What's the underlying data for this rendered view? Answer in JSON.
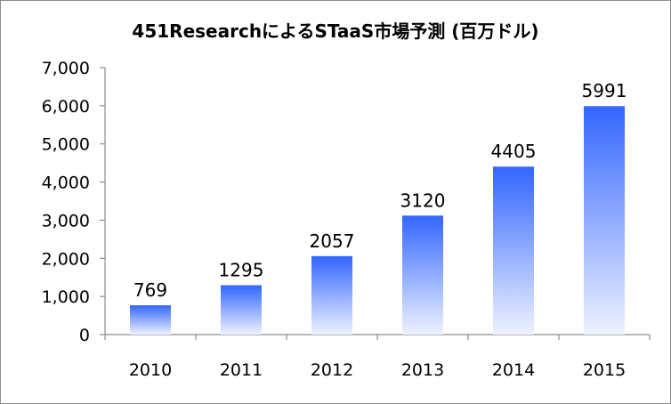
{
  "chart_data": {
    "type": "bar",
    "title": "451ResearchによるSTaaS市場予測 (百万ドル)",
    "categories": [
      "2010",
      "2011",
      "2012",
      "2013",
      "2014",
      "2015"
    ],
    "values": [
      769,
      1295,
      2057,
      3120,
      4405,
      5991
    ],
    "data_labels": [
      "769",
      "1295",
      "2057",
      "3120",
      "4405",
      "5991"
    ],
    "y_ticks": [
      "0",
      "1,000",
      "2,000",
      "3,000",
      "4,000",
      "5,000",
      "6,000",
      "7,000"
    ],
    "ylim": [
      0,
      7000
    ],
    "grid": false,
    "legend": "none",
    "bar_color_top": "#3366ff",
    "bar_color_bottom": "#eef2ff"
  }
}
